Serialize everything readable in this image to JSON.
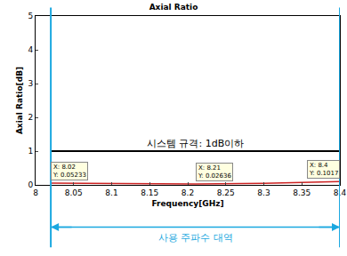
{
  "chart_data": {
    "type": "line",
    "title": "Axial Ratio",
    "x_label": "Frequency[GHz]",
    "y_label": "Axial Ratio[dB]",
    "xlim": [
      8,
      8.4
    ],
    "xticks": [
      8,
      8.05,
      8.1,
      8.15,
      8.2,
      8.25,
      8.3,
      8.35,
      8.4
    ],
    "ylim": [
      0,
      5
    ],
    "yticks": [
      0,
      1,
      2,
      3,
      4,
      5
    ],
    "grid": false,
    "series": [
      {
        "color": "#cc2222",
        "x": [
          8.02,
          8.1,
          8.21,
          8.3,
          8.35,
          8.4
        ],
        "values": [
          0.05233,
          0.038,
          0.02636,
          0.045,
          0.07,
          0.1017
        ]
      }
    ],
    "spec_line": {
      "label": "시스템 규격: 1dB이하",
      "value": 1,
      "x": [
        8.02,
        8.4
      ],
      "color": "#000000"
    },
    "band": {
      "label": "사용 주파수 대역",
      "x": [
        8.02,
        8.4
      ],
      "color": "#1ba8e0"
    },
    "datatips": [
      {
        "x": 8.02,
        "y": 0.05233,
        "text": [
          "X: 8.02",
          "Y: 0.05233"
        ]
      },
      {
        "x": 8.21,
        "y": 0.02636,
        "text": [
          "X: 8.21",
          "Y: 0.02636"
        ]
      },
      {
        "x": 8.4,
        "y": 0.1017,
        "text": [
          "X: 8.4",
          "Y: 0.1017"
        ]
      }
    ]
  }
}
